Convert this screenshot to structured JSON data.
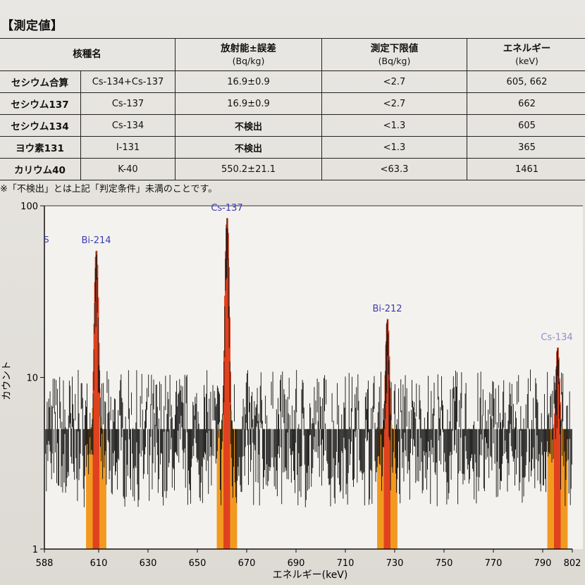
{
  "document": {
    "section_title": "【測定値】",
    "table": {
      "headers": {
        "nuclide": "核種名",
        "activity": "放射能±誤差",
        "activity_unit": "(Bq/kg)",
        "lower_limit": "測定下限値",
        "lower_limit_unit": "(Bq/kg)",
        "energy": "エネルギー",
        "energy_unit": "(keV)"
      },
      "rows": [
        {
          "name": "セシウム合算",
          "symbol": "Cs-134+Cs-137",
          "activity": "16.9±0.9",
          "lower_limit": "<2.7",
          "energy": "605, 662"
        },
        {
          "name": "セシウム137",
          "symbol": "Cs-137",
          "activity": "16.9±0.9",
          "lower_limit": "<2.7",
          "energy": "662"
        },
        {
          "name": "セシウム134",
          "symbol": "Cs-134",
          "activity": "不検出",
          "lower_limit": "<1.3",
          "energy": "605"
        },
        {
          "name": "ヨウ素131",
          "symbol": "I-131",
          "activity": "不検出",
          "lower_limit": "<1.3",
          "energy": "365"
        },
        {
          "name": "カリウム40",
          "symbol": "K-40",
          "activity": "550.2±21.1",
          "lower_limit": "<63.3",
          "energy": "1461"
        }
      ]
    },
    "footnote": "※「不検出」とは上記「判定条件」未満のことです。"
  },
  "chart_data": {
    "type": "bar",
    "xlabel": "エネルギー(keV)",
    "ylabel": "カウント",
    "x_range": [
      588,
      802
    ],
    "x_ticks": [
      "588",
      "610",
      "630",
      "650",
      "670",
      "690",
      "710",
      "730",
      "750",
      "770",
      "790",
      "802"
    ],
    "y_scale": "log",
    "y_range": [
      1,
      100
    ],
    "y_ticks": [
      "1",
      "10",
      "100"
    ],
    "edge_label": "S",
    "peaks": [
      {
        "name": "Bi-214",
        "energy": 609,
        "count": 55
      },
      {
        "name": "Cs-137",
        "energy": 662,
        "count": 85
      },
      {
        "name": "Bi-212",
        "energy": 727,
        "count": 22
      },
      {
        "name": "Cs-134",
        "energy": 796,
        "count": 15
      }
    ],
    "background_level": 5,
    "colors": {
      "spectrum": "#111111",
      "peak": "#e0421f",
      "peak_shoulder": "#f29a20",
      "label": "#3b3bb0",
      "label_faint": "#8e8ec8"
    }
  }
}
